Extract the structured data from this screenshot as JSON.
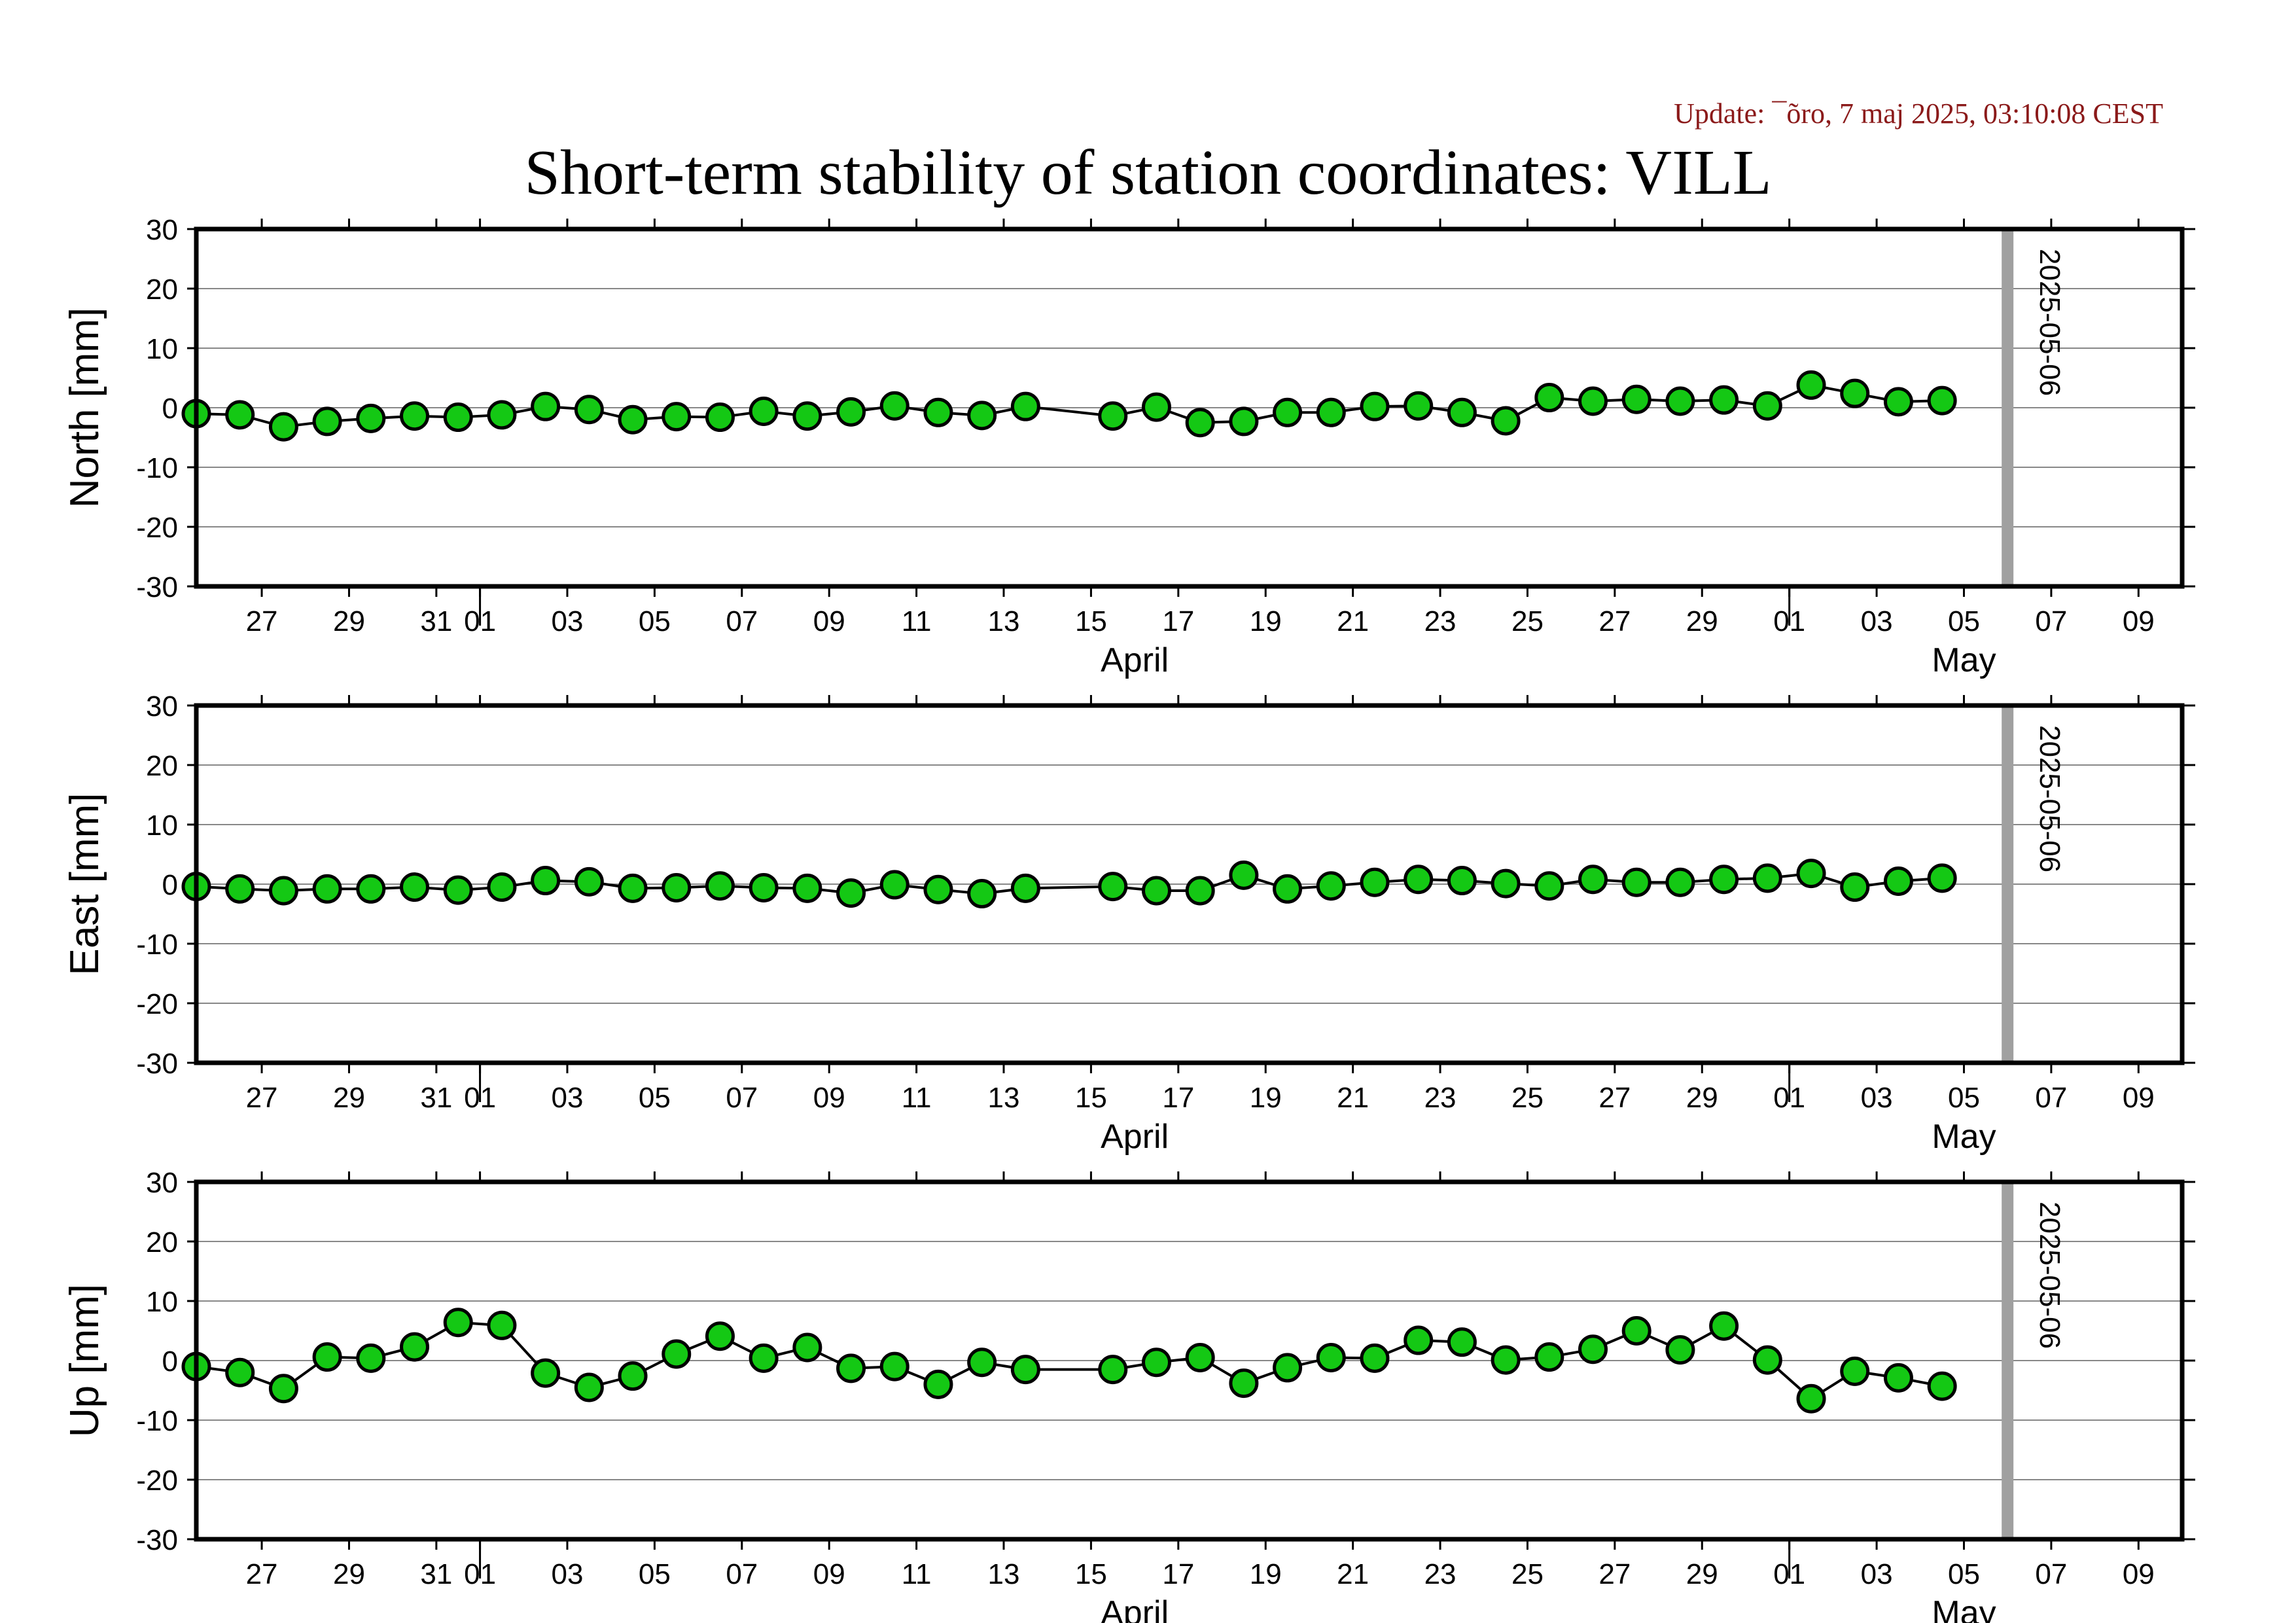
{
  "update_text": "Update: ¯õro, 7 maj 2025, 03:10:08 CEST",
  "title": "Short-term stability of station coordinates: VILL",
  "colors": {
    "point_fill": "#14c814",
    "marker_line": "#a0a0a0",
    "update_text": "#8b1a1a"
  },
  "chart_data": [
    {
      "type": "line",
      "ylabel": "North [mm]",
      "ylim": [
        -30,
        30
      ],
      "yticks": [
        30,
        20,
        10,
        0,
        -10,
        -20,
        -30
      ],
      "grid": true,
      "xlim": [
        "2025-03-25T12:00",
        "2025-05-10"
      ],
      "xtick_labels": [
        {
          "date": "2025-03-27",
          "label": "27"
        },
        {
          "date": "2025-03-29",
          "label": "29"
        },
        {
          "date": "2025-03-31",
          "label": "31"
        },
        {
          "date": "2025-04-01",
          "label": "01"
        },
        {
          "date": "2025-04-03",
          "label": "03"
        },
        {
          "date": "2025-04-05",
          "label": "05"
        },
        {
          "date": "2025-04-07",
          "label": "07"
        },
        {
          "date": "2025-04-09",
          "label": "09"
        },
        {
          "date": "2025-04-11",
          "label": "11"
        },
        {
          "date": "2025-04-13",
          "label": "13"
        },
        {
          "date": "2025-04-15",
          "label": "15"
        },
        {
          "date": "2025-04-17",
          "label": "17"
        },
        {
          "date": "2025-04-19",
          "label": "19"
        },
        {
          "date": "2025-04-21",
          "label": "21"
        },
        {
          "date": "2025-04-23",
          "label": "23"
        },
        {
          "date": "2025-04-25",
          "label": "25"
        },
        {
          "date": "2025-04-27",
          "label": "27"
        },
        {
          "date": "2025-04-29",
          "label": "29"
        },
        {
          "date": "2025-05-01",
          "label": "01"
        },
        {
          "date": "2025-05-03",
          "label": "03"
        },
        {
          "date": "2025-05-05",
          "label": "05"
        },
        {
          "date": "2025-05-07",
          "label": "07"
        },
        {
          "date": "2025-05-09",
          "label": "09"
        }
      ],
      "month_labels": [
        {
          "date": "2025-04-16",
          "label": "April"
        },
        {
          "date": "2025-05-05",
          "label": "May"
        }
      ],
      "month_boundaries": [
        "2025-04-01",
        "2025-05-01"
      ],
      "marker": {
        "date": "2025-05-06",
        "label": "2025-05-06"
      },
      "x": [
        "2025-03-25T12:00",
        "2025-03-26T12:00",
        "2025-03-27T12:00",
        "2025-03-28T12:00",
        "2025-03-29T12:00",
        "2025-03-30T12:00",
        "2025-03-31T12:00",
        "2025-04-01T12:00",
        "2025-04-02T12:00",
        "2025-04-03T12:00",
        "2025-04-04T12:00",
        "2025-04-05T12:00",
        "2025-04-06T12:00",
        "2025-04-07T12:00",
        "2025-04-08T12:00",
        "2025-04-09T12:00",
        "2025-04-10T12:00",
        "2025-04-11T12:00",
        "2025-04-12T12:00",
        "2025-04-13T12:00",
        "2025-04-15T12:00",
        "2025-04-16T12:00",
        "2025-04-17T12:00",
        "2025-04-18T12:00",
        "2025-04-19T12:00",
        "2025-04-20T12:00",
        "2025-04-21T12:00",
        "2025-04-22T12:00",
        "2025-04-23T12:00",
        "2025-04-24T12:00",
        "2025-04-25T12:00",
        "2025-04-26T12:00",
        "2025-04-27T12:00",
        "2025-04-28T12:00",
        "2025-04-29T12:00",
        "2025-04-30T12:00",
        "2025-05-01T12:00",
        "2025-05-02T12:00",
        "2025-05-03T12:00",
        "2025-05-04T12:00"
      ],
      "y": [
        -1.0,
        -1.2,
        -3.2,
        -2.3,
        -1.8,
        -1.4,
        -1.6,
        -1.2,
        0.2,
        -0.3,
        -2.0,
        -1.5,
        -1.6,
        -0.6,
        -1.4,
        -0.7,
        0.3,
        -0.8,
        -1.3,
        0.2,
        -1.4,
        0.1,
        -2.5,
        -2.3,
        -0.8,
        -0.8,
        0.2,
        0.3,
        -0.8,
        -2.2,
        1.7,
        1.1,
        1.4,
        1.1,
        1.3,
        0.3,
        3.8,
        2.4,
        1.0,
        1.2
      ]
    },
    {
      "type": "line",
      "ylabel": "East [mm]",
      "ylim": [
        -30,
        30
      ],
      "yticks": [
        30,
        20,
        10,
        0,
        -10,
        -20,
        -30
      ],
      "grid": true,
      "xlim": [
        "2025-03-25T12:00",
        "2025-05-10"
      ],
      "xtick_labels": [
        {
          "date": "2025-03-27",
          "label": "27"
        },
        {
          "date": "2025-03-29",
          "label": "29"
        },
        {
          "date": "2025-03-31",
          "label": "31"
        },
        {
          "date": "2025-04-01",
          "label": "01"
        },
        {
          "date": "2025-04-03",
          "label": "03"
        },
        {
          "date": "2025-04-05",
          "label": "05"
        },
        {
          "date": "2025-04-07",
          "label": "07"
        },
        {
          "date": "2025-04-09",
          "label": "09"
        },
        {
          "date": "2025-04-11",
          "label": "11"
        },
        {
          "date": "2025-04-13",
          "label": "13"
        },
        {
          "date": "2025-04-15",
          "label": "15"
        },
        {
          "date": "2025-04-17",
          "label": "17"
        },
        {
          "date": "2025-04-19",
          "label": "19"
        },
        {
          "date": "2025-04-21",
          "label": "21"
        },
        {
          "date": "2025-04-23",
          "label": "23"
        },
        {
          "date": "2025-04-25",
          "label": "25"
        },
        {
          "date": "2025-04-27",
          "label": "27"
        },
        {
          "date": "2025-04-29",
          "label": "29"
        },
        {
          "date": "2025-05-01",
          "label": "01"
        },
        {
          "date": "2025-05-03",
          "label": "03"
        },
        {
          "date": "2025-05-05",
          "label": "05"
        },
        {
          "date": "2025-05-07",
          "label": "07"
        },
        {
          "date": "2025-05-09",
          "label": "09"
        }
      ],
      "month_labels": [
        {
          "date": "2025-04-16",
          "label": "April"
        },
        {
          "date": "2025-05-05",
          "label": "May"
        }
      ],
      "month_boundaries": [
        "2025-04-01",
        "2025-05-01"
      ],
      "marker": {
        "date": "2025-05-06",
        "label": "2025-05-06"
      },
      "x": [
        "2025-03-25T12:00",
        "2025-03-26T12:00",
        "2025-03-27T12:00",
        "2025-03-28T12:00",
        "2025-03-29T12:00",
        "2025-03-30T12:00",
        "2025-03-31T12:00",
        "2025-04-01T12:00",
        "2025-04-02T12:00",
        "2025-04-03T12:00",
        "2025-04-04T12:00",
        "2025-04-05T12:00",
        "2025-04-06T12:00",
        "2025-04-07T12:00",
        "2025-04-08T12:00",
        "2025-04-09T12:00",
        "2025-04-10T12:00",
        "2025-04-11T12:00",
        "2025-04-12T12:00",
        "2025-04-13T12:00",
        "2025-04-15T12:00",
        "2025-04-16T12:00",
        "2025-04-17T12:00",
        "2025-04-18T12:00",
        "2025-04-19T12:00",
        "2025-04-20T12:00",
        "2025-04-21T12:00",
        "2025-04-22T12:00",
        "2025-04-23T12:00",
        "2025-04-24T12:00",
        "2025-04-25T12:00",
        "2025-04-26T12:00",
        "2025-04-27T12:00",
        "2025-04-28T12:00",
        "2025-04-29T12:00",
        "2025-04-30T12:00",
        "2025-05-01T12:00",
        "2025-05-02T12:00",
        "2025-05-03T12:00",
        "2025-05-04T12:00"
      ],
      "y": [
        -0.4,
        -0.8,
        -1.1,
        -0.8,
        -0.8,
        -0.5,
        -1.0,
        -0.5,
        0.6,
        0.4,
        -0.7,
        -0.6,
        -0.3,
        -0.6,
        -0.7,
        -1.5,
        -0.1,
        -0.9,
        -1.6,
        -0.7,
        -0.4,
        -1.1,
        -1.1,
        1.5,
        -0.8,
        -0.3,
        0.3,
        0.8,
        0.6,
        0.1,
        -0.3,
        0.8,
        0.3,
        0.3,
        0.8,
        1.0,
        1.8,
        -0.5,
        0.5,
        1.0
      ]
    },
    {
      "type": "line",
      "ylabel": "Up [mm]",
      "ylim": [
        -30,
        30
      ],
      "yticks": [
        30,
        20,
        10,
        0,
        -10,
        -20,
        -30
      ],
      "grid": true,
      "xlim": [
        "2025-03-25T12:00",
        "2025-05-10"
      ],
      "xtick_labels": [
        {
          "date": "2025-03-27",
          "label": "27"
        },
        {
          "date": "2025-03-29",
          "label": "29"
        },
        {
          "date": "2025-03-31",
          "label": "31"
        },
        {
          "date": "2025-04-01",
          "label": "01"
        },
        {
          "date": "2025-04-03",
          "label": "03"
        },
        {
          "date": "2025-04-05",
          "label": "05"
        },
        {
          "date": "2025-04-07",
          "label": "07"
        },
        {
          "date": "2025-04-09",
          "label": "09"
        },
        {
          "date": "2025-04-11",
          "label": "11"
        },
        {
          "date": "2025-04-13",
          "label": "13"
        },
        {
          "date": "2025-04-15",
          "label": "15"
        },
        {
          "date": "2025-04-17",
          "label": "17"
        },
        {
          "date": "2025-04-19",
          "label": "19"
        },
        {
          "date": "2025-04-21",
          "label": "21"
        },
        {
          "date": "2025-04-23",
          "label": "23"
        },
        {
          "date": "2025-04-25",
          "label": "25"
        },
        {
          "date": "2025-04-27",
          "label": "27"
        },
        {
          "date": "2025-04-29",
          "label": "29"
        },
        {
          "date": "2025-05-01",
          "label": "01"
        },
        {
          "date": "2025-05-03",
          "label": "03"
        },
        {
          "date": "2025-05-05",
          "label": "05"
        },
        {
          "date": "2025-05-07",
          "label": "07"
        },
        {
          "date": "2025-05-09",
          "label": "09"
        }
      ],
      "month_labels": [
        {
          "date": "2025-04-16",
          "label": "April"
        },
        {
          "date": "2025-05-05",
          "label": "May"
        }
      ],
      "month_boundaries": [
        "2025-04-01",
        "2025-05-01"
      ],
      "marker": {
        "date": "2025-05-06",
        "label": "2025-05-06"
      },
      "x": [
        "2025-03-25T12:00",
        "2025-03-26T12:00",
        "2025-03-27T12:00",
        "2025-03-28T12:00",
        "2025-03-29T12:00",
        "2025-03-30T12:00",
        "2025-03-31T12:00",
        "2025-04-01T12:00",
        "2025-04-02T12:00",
        "2025-04-03T12:00",
        "2025-04-04T12:00",
        "2025-04-05T12:00",
        "2025-04-06T12:00",
        "2025-04-07T12:00",
        "2025-04-08T12:00",
        "2025-04-09T12:00",
        "2025-04-10T12:00",
        "2025-04-11T12:00",
        "2025-04-12T12:00",
        "2025-04-13T12:00",
        "2025-04-15T12:00",
        "2025-04-16T12:00",
        "2025-04-17T12:00",
        "2025-04-18T12:00",
        "2025-04-19T12:00",
        "2025-04-20T12:00",
        "2025-04-21T12:00",
        "2025-04-22T12:00",
        "2025-04-23T12:00",
        "2025-04-24T12:00",
        "2025-04-25T12:00",
        "2025-04-26T12:00",
        "2025-04-27T12:00",
        "2025-04-28T12:00",
        "2025-04-29T12:00",
        "2025-04-30T12:00",
        "2025-05-01T12:00",
        "2025-05-02T12:00",
        "2025-05-03T12:00",
        "2025-05-04T12:00"
      ],
      "y": [
        -1.0,
        -2.0,
        -4.7,
        0.6,
        0.4,
        2.3,
        6.4,
        5.9,
        -2.1,
        -4.5,
        -2.6,
        1.1,
        4.1,
        0.4,
        2.2,
        -1.3,
        -1.0,
        -4.0,
        -0.3,
        -1.5,
        -1.5,
        -0.3,
        0.5,
        -3.8,
        -1.2,
        0.5,
        0.4,
        3.4,
        3.1,
        0.1,
        0.6,
        1.9,
        5.0,
        1.8,
        5.8,
        0.1,
        -6.4,
        -1.8,
        -2.9,
        -4.3
      ]
    }
  ]
}
